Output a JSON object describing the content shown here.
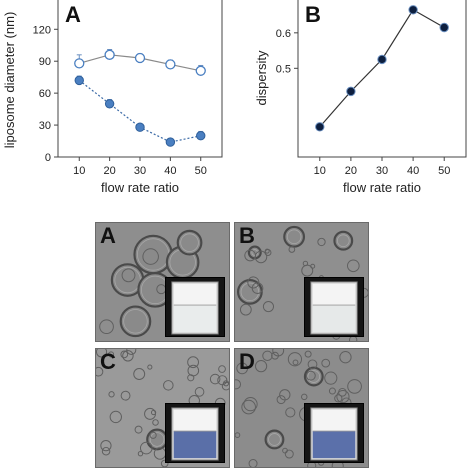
{
  "figure": {
    "panel_a_letter": "A",
    "panel_b_letter": "B",
    "micrographs": [
      {
        "label": "A",
        "vial_liquid": "milky white",
        "liquid_color": "#e9ecec"
      },
      {
        "label": "B",
        "vial_liquid": "milky white",
        "liquid_color": "#e6e9e9"
      },
      {
        "label": "C",
        "vial_liquid": "translucent blue",
        "liquid_color": "#5a6fa8"
      },
      {
        "label": "D",
        "vial_liquid": "translucent blue",
        "liquid_color": "#5b70aa"
      }
    ]
  },
  "chart_data": [
    {
      "type": "line",
      "panel": "A",
      "ylabel": "liposome diameter (nm)",
      "xlabel": "flow rate ratio",
      "x": [
        10,
        20,
        30,
        40,
        50
      ],
      "xticks": [
        "10",
        "20",
        "30",
        "40",
        "50"
      ],
      "yticks": [
        "0",
        "30",
        "60",
        "90",
        "120"
      ],
      "ylim": [
        0,
        140
      ],
      "xlim": [
        3,
        57
      ],
      "grid": false,
      "legend": "none",
      "series": [
        {
          "marker": "open-circle",
          "line": "solid",
          "color": "#4a7fc1",
          "values": [
            88,
            96,
            93,
            87,
            81
          ],
          "errors": [
            8,
            5,
            4,
            4,
            5
          ]
        },
        {
          "marker": "filled-circle",
          "line": "dotted",
          "color": "#4a7fc1",
          "values": [
            72,
            50,
            28,
            14,
            20
          ],
          "errors": [
            4,
            4,
            3,
            2,
            4
          ]
        }
      ]
    },
    {
      "type": "line",
      "panel": "B",
      "ylabel": "dispersity",
      "xlabel": "flow rate ratio",
      "x": [
        10,
        20,
        30,
        40,
        50
      ],
      "xticks": [
        "10",
        "20",
        "30",
        "40",
        "50"
      ],
      "yticks": [
        "0.5",
        "0.6"
      ],
      "ylim": [
        0.25,
        0.67
      ],
      "xlim": [
        3,
        57
      ],
      "grid": false,
      "legend": "none",
      "series": [
        {
          "marker": "filled-circle",
          "line": "solid",
          "color": "#0d1f3f",
          "values": [
            0.335,
            0.435,
            0.525,
            0.665,
            0.615
          ],
          "errors": [
            0.01,
            0.01,
            0.01,
            0.01,
            0.01
          ]
        }
      ]
    }
  ]
}
